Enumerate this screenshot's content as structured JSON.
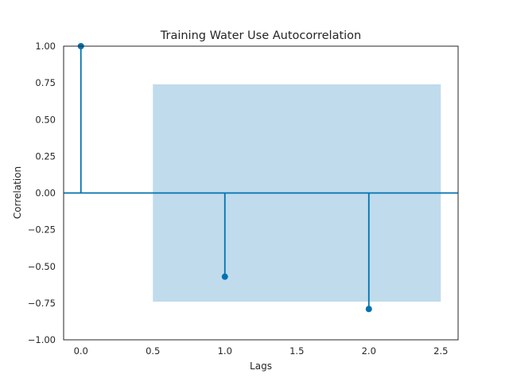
{
  "chart_data": {
    "type": "stem",
    "title": "Training Water Use Autocorrelation",
    "xlabel": "Lags",
    "ylabel": "Correlation",
    "xlim": [
      -0.12,
      2.62
    ],
    "ylim": [
      -1.0,
      1.0
    ],
    "x_ticks": [
      0.0,
      0.5,
      1.0,
      1.5,
      2.0,
      2.5
    ],
    "x_tick_labels": [
      "0.0",
      "0.5",
      "1.0",
      "1.5",
      "2.0",
      "2.5"
    ],
    "y_ticks": [
      1.0,
      0.75,
      0.5,
      0.25,
      0.0,
      -0.25,
      -0.5,
      -0.75,
      -1.0
    ],
    "y_tick_labels": [
      "1.00",
      "0.75",
      "0.50",
      "0.25",
      "0.00",
      "−0.25",
      "−0.50",
      "−0.75",
      "−1.00"
    ],
    "grid": false,
    "points": [
      {
        "lag": 0,
        "value": 1.0
      },
      {
        "lag": 1,
        "value": -0.57
      },
      {
        "lag": 2,
        "value": -0.79
      }
    ],
    "confidence_band": {
      "x_range": [
        0.5,
        2.5
      ],
      "lower": -0.74,
      "upper": 0.74
    },
    "zero_line": true,
    "colors": {
      "stem": "#0072b2",
      "band": "#c0dbec",
      "frame": "#262626"
    }
  }
}
